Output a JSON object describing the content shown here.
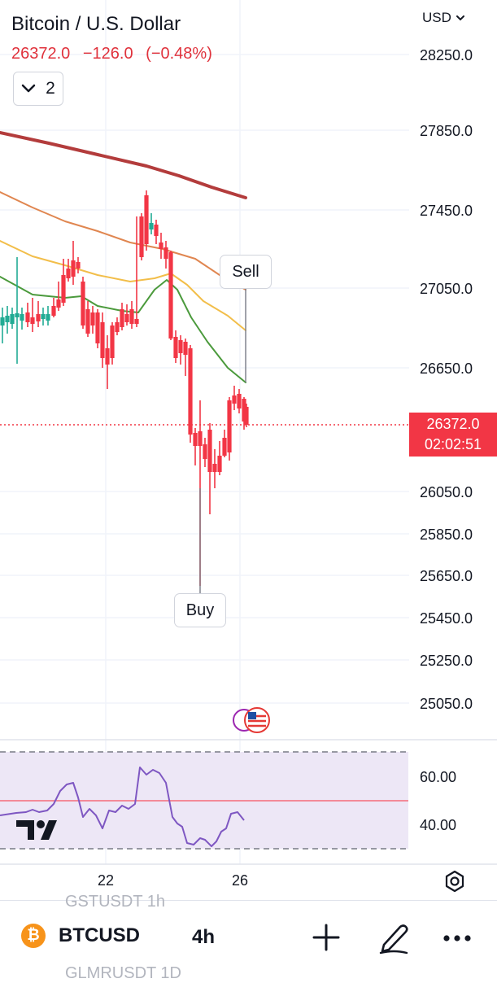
{
  "header": {
    "title": "Bitcoin / U.S. Dollar",
    "last_price": "26372.0",
    "change": "−126.0",
    "change_pct": "(−0.48%)",
    "indicators_count": "2",
    "currency": "USD"
  },
  "price_axis": {
    "labels": [
      "28250.0",
      "27850.0",
      "27450.0",
      "27050.0",
      "26650.0",
      "26050.0",
      "25850.0",
      "25650.0",
      "25450.0",
      "25250.0",
      "25050.0"
    ],
    "current_price": "26372.0",
    "countdown": "02:02:51"
  },
  "rsi_axis": {
    "labels": [
      "60.00",
      "40.00"
    ]
  },
  "time_axis": {
    "labels": [
      "22",
      "26"
    ]
  },
  "tags": {
    "sell": "Sell",
    "buy": "Buy"
  },
  "bottom_bar": {
    "symbol": "BTCUSD",
    "coin_glyph": "₿",
    "interval": "4h",
    "ghost_top": "GSTUSDT   1h",
    "ghost_bottom": "GLMRUSDT  1D"
  },
  "colors": {
    "up": "#22ab94",
    "down": "#f23645",
    "ma_long": "#b33c3c",
    "ma_orange": "#e08650",
    "ma_yellow": "#f2be4a",
    "ma_green": "#4b9a3c",
    "rsi_line": "#7e57c2",
    "rsi_band": "#ede7f6",
    "midline": "#f7525f",
    "price_label": "#f23645"
  },
  "icons": {
    "currency_menu": "chevron-down-icon",
    "indicators": "chevron-down-icon",
    "settings": "gear-icon",
    "add": "plus-icon",
    "draw": "pen-icon",
    "more": "more-dots-icon",
    "logo": "tradingview-logo",
    "events": "us-flag-event-icon"
  }
}
